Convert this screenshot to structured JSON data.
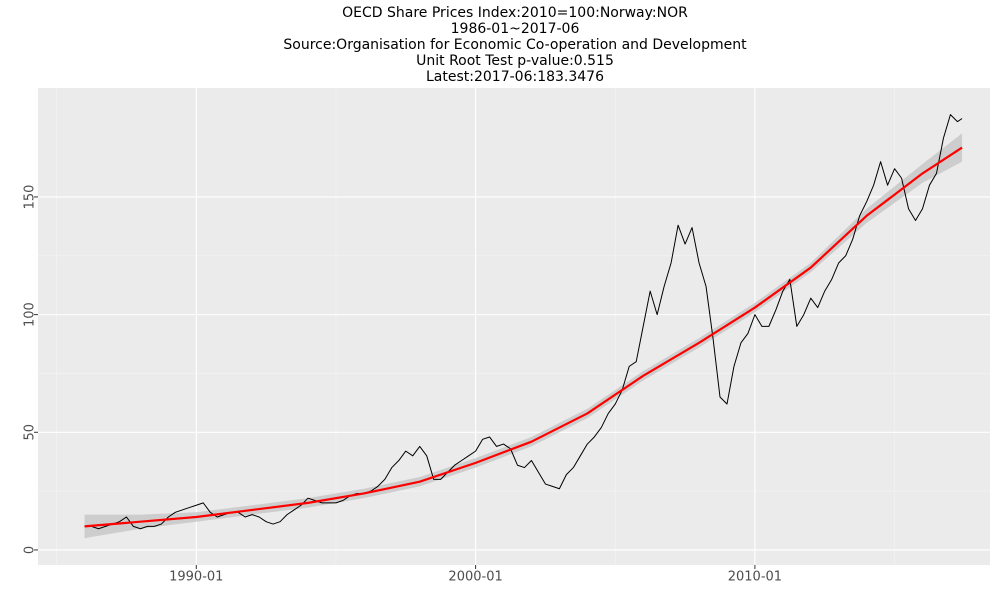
{
  "chart_data": {
    "type": "line",
    "title": "OECD Share Prices Index:2010=100:Norway:NOR",
    "subtitle": [
      "1986-01~2017-06",
      "Source:Organisation for Economic Co-operation and Development",
      "Unit Root Test p-value:0.515",
      "Latest:2017-06:183.3476"
    ],
    "x": [
      "1986-01",
      "1986-04",
      "1986-07",
      "1986-10",
      "1987-01",
      "1987-04",
      "1987-07",
      "1987-10",
      "1988-01",
      "1988-04",
      "1988-07",
      "1988-10",
      "1989-01",
      "1989-04",
      "1989-07",
      "1989-10",
      "1990-01",
      "1990-04",
      "1990-07",
      "1990-10",
      "1991-01",
      "1991-04",
      "1991-07",
      "1991-10",
      "1992-01",
      "1992-04",
      "1992-07",
      "1992-10",
      "1993-01",
      "1993-04",
      "1993-07",
      "1993-10",
      "1994-01",
      "1994-04",
      "1994-07",
      "1994-10",
      "1995-01",
      "1995-04",
      "1995-07",
      "1995-10",
      "1996-01",
      "1996-04",
      "1996-07",
      "1996-10",
      "1997-01",
      "1997-04",
      "1997-07",
      "1997-10",
      "1998-01",
      "1998-04",
      "1998-07",
      "1998-10",
      "1999-01",
      "1999-04",
      "1999-07",
      "1999-10",
      "2000-01",
      "2000-04",
      "2000-07",
      "2000-10",
      "2001-01",
      "2001-04",
      "2001-07",
      "2001-10",
      "2002-01",
      "2002-04",
      "2002-07",
      "2002-10",
      "2003-01",
      "2003-04",
      "2003-07",
      "2003-10",
      "2004-01",
      "2004-04",
      "2004-07",
      "2004-10",
      "2005-01",
      "2005-04",
      "2005-07",
      "2005-10",
      "2006-01",
      "2006-04",
      "2006-07",
      "2006-10",
      "2007-01",
      "2007-04",
      "2007-07",
      "2007-10",
      "2008-01",
      "2008-04",
      "2008-07",
      "2008-10",
      "2009-01",
      "2009-04",
      "2009-07",
      "2009-10",
      "2010-01",
      "2010-04",
      "2010-07",
      "2010-10",
      "2011-01",
      "2011-04",
      "2011-07",
      "2011-10",
      "2012-01",
      "2012-04",
      "2012-07",
      "2012-10",
      "2013-01",
      "2013-04",
      "2013-07",
      "2013-10",
      "2014-01",
      "2014-04",
      "2014-07",
      "2014-10",
      "2015-01",
      "2015-04",
      "2015-07",
      "2015-10",
      "2016-01",
      "2016-04",
      "2016-07",
      "2016-10",
      "2017-01",
      "2017-04",
      "2017-06"
    ],
    "series": [
      {
        "color": "#000000",
        "values": [
          10,
          10,
          9,
          10,
          11,
          12,
          14,
          10,
          9,
          10,
          10,
          11,
          14,
          16,
          17,
          18,
          19,
          20,
          16,
          14,
          15,
          16,
          16,
          14,
          15,
          14,
          12,
          11,
          12,
          15,
          17,
          19,
          22,
          21,
          20,
          20,
          20,
          21,
          23,
          24,
          24,
          25,
          27,
          30,
          35,
          38,
          42,
          40,
          44,
          40,
          30,
          30,
          33,
          36,
          38,
          40,
          42,
          47,
          48,
          44,
          45,
          43,
          36,
          35,
          38,
          33,
          28,
          27,
          26,
          32,
          35,
          40,
          45,
          48,
          52,
          58,
          62,
          68,
          78,
          80,
          95,
          110,
          100,
          112,
          122,
          138,
          130,
          137,
          122,
          112,
          90,
          65,
          62,
          78,
          88,
          92,
          100,
          95,
          95,
          102,
          110,
          115,
          95,
          100,
          107,
          103,
          110,
          115,
          122,
          125,
          132,
          142,
          148,
          155,
          165,
          155,
          162,
          158,
          145,
          140,
          145,
          155,
          160,
          175,
          185,
          182,
          183.3476
        ]
      }
    ],
    "smooth": {
      "color": "#ff0000",
      "band_color": "#c8c8c8",
      "x": [
        "1986-01",
        "1988-01",
        "1990-01",
        "1992-01",
        "1994-01",
        "1996-01",
        "1998-01",
        "2000-01",
        "2002-01",
        "2004-01",
        "2006-01",
        "2008-01",
        "2010-01",
        "2012-01",
        "2014-01",
        "2016-01",
        "2017-06"
      ],
      "values": [
        10,
        12,
        14,
        17,
        20,
        24,
        29,
        37,
        46,
        58,
        74,
        88,
        103,
        120,
        142,
        160,
        171
      ],
      "lower": [
        5,
        9,
        12,
        15,
        18,
        22,
        27,
        35,
        44,
        56,
        72,
        86,
        101,
        118,
        139,
        156,
        165
      ],
      "upper": [
        15,
        15,
        16,
        19,
        22,
        26,
        31,
        39,
        48,
        60,
        76,
        90,
        105,
        122,
        145,
        164,
        177
      ]
    },
    "xlim": [
      "1984-05",
      "2018-06"
    ],
    "xticks": [
      "1990-01",
      "2000-01",
      "2010-01"
    ],
    "ylim": [
      -6.4,
      196.3
    ],
    "yticks": [
      0,
      50,
      100,
      150
    ],
    "grid": true
  }
}
